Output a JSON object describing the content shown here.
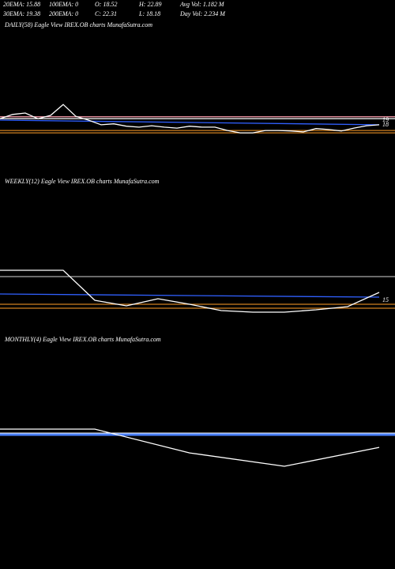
{
  "header": {
    "row1": [
      "20EMA: 15.88",
      "100EMA: 0",
      "O: 18.52",
      "H: 22.89",
      "Avg Vol: 1.182  M"
    ],
    "row2": [
      "30EMA: 19.38",
      "200EMA: 0",
      "C: 22.31",
      "L: 18.18",
      "Day Vol: 2.234  M"
    ]
  },
  "chart_data": [
    {
      "type": "line",
      "title": "DAILY(58) Eagle  View  IREX.OB charts MunafaSutra.com",
      "ylim": [
        6.8,
        37.7
      ],
      "yticks": [
        19,
        18
      ],
      "levels": [
        {
          "color": "#ff9fb0",
          "value": 19.7
        },
        {
          "color": "#ffffff",
          "value": 19.3
        },
        {
          "color": "#d08020",
          "value": 16.8
        },
        {
          "color": "#d08020",
          "value": 16.3
        }
      ],
      "series": [
        {
          "color": "#3060ff",
          "values": [
            19,
            18
          ]
        },
        {
          "color": "#ffffff",
          "values": [
            19.3,
            20.2,
            20.5,
            19.3,
            20,
            22.3,
            19.8,
            19,
            18,
            18.2,
            17.7,
            17.5,
            17.8,
            17.5,
            17.3,
            17.7,
            17.5,
            17.5,
            16.8,
            16.3,
            16.3,
            16.8,
            16.8,
            16.7,
            16.5,
            17.2,
            17,
            16.7,
            17.3,
            17.8,
            18
          ]
        }
      ]
    },
    {
      "type": "line",
      "title": "WEEKLY(12) Eagle  View  IREX.OB charts MunafaSutra.com",
      "ylim": [
        7.5,
        51.25
      ],
      "yticks": [
        15
      ],
      "levels": [
        {
          "color": "#aaaaaa",
          "value": 22.5
        },
        {
          "color": "#d08020",
          "value": 13.75
        },
        {
          "color": "#d08020",
          "value": 12.5
        }
      ],
      "series": [
        {
          "color": "#3060ff",
          "values": [
            17,
            16
          ]
        },
        {
          "color": "#ffffff",
          "values": [
            24.5,
            24.5,
            24.5,
            15,
            13.25,
            15.5,
            13.75,
            11.75,
            11.25,
            11.25,
            12,
            13,
            17.5
          ]
        }
      ]
    },
    {
      "type": "line",
      "title": "MONTHLY(4) Eagle  View  IREX.OB charts MunafaSutra.com",
      "ylim": [
        0,
        100
      ],
      "yticks": [],
      "levels": [
        {
          "color": "#ffffff",
          "value": 35.4
        },
        {
          "color": "#4a80ff",
          "value": 34.3
        }
      ],
      "series": [
        {
          "color": "#ffffff",
          "values": [
            38.3,
            38.3,
            21.1,
            11.4,
            25.1
          ]
        }
      ]
    }
  ]
}
